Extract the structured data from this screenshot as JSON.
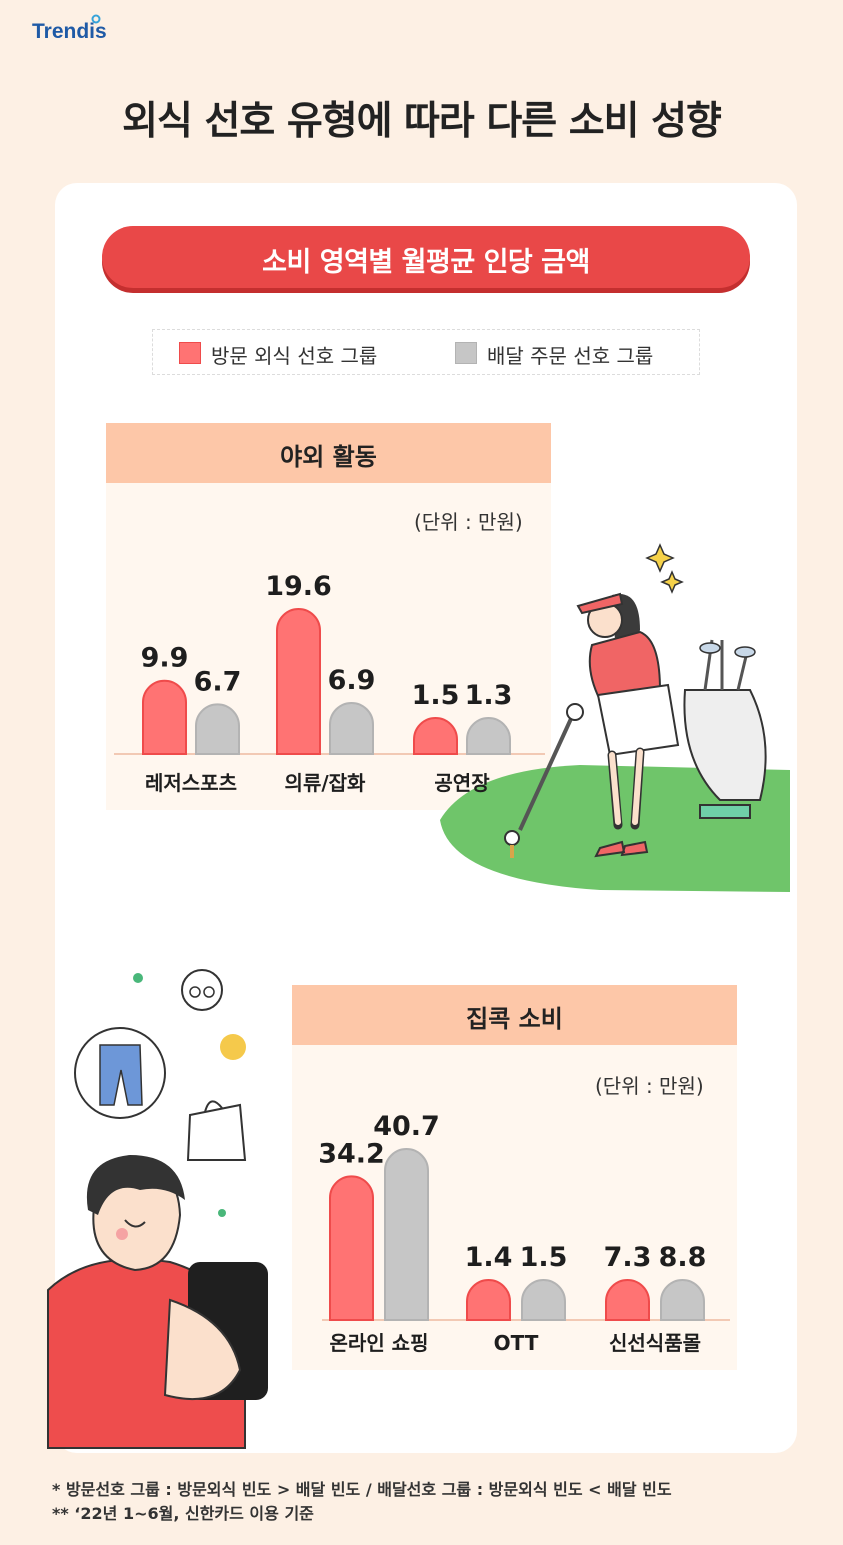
{
  "brand": "Trendis",
  "title": "외식 선호 유형에 따라 다른 소비 성향",
  "banner": "소비 영역별 월평균 인당 금액",
  "legend": {
    "series1": "방문 외식 선호 그룹",
    "series2": "배달 주문 선호 그룹"
  },
  "colors": {
    "series1": "#ff7373",
    "series1_stroke": "#ef4b4b",
    "series2": "#c6c6c6",
    "series2_stroke": "#b3b3b3",
    "panel_head": "#fdc7a8",
    "banner": "#e94848"
  },
  "chart_data": [
    {
      "type": "bar",
      "title": "야외 활동",
      "unit": "(단위 : 만원)",
      "categories": [
        "레저스포츠",
        "의류/잡화",
        "공연장"
      ],
      "series": [
        {
          "name": "방문 외식 선호 그룹",
          "values": [
            9.9,
            19.6,
            1.5
          ],
          "labels": [
            "9.9",
            "19.6",
            "1.5"
          ]
        },
        {
          "name": "배달 주문 선호 그룹",
          "values": [
            6.7,
            6.9,
            1.3
          ],
          "labels": [
            "6.7",
            "6.9",
            "1.3"
          ]
        }
      ]
    },
    {
      "type": "bar",
      "title": "집콕 소비",
      "unit": "(단위 : 만원)",
      "categories": [
        "온라인 쇼핑",
        "OTT",
        "신선식품몰"
      ],
      "series": [
        {
          "name": "방문 외식 선호 그룹",
          "values": [
            34.2,
            1.4,
            7.3
          ],
          "labels": [
            "34.2",
            "1.4",
            "7.3"
          ]
        },
        {
          "name": "배달 주문 선호 그룹",
          "values": [
            40.7,
            1.5,
            8.8
          ],
          "labels": [
            "40.7",
            "1.5",
            "8.8"
          ]
        }
      ]
    }
  ],
  "footnotes": [
    "* 방문선호 그룹 : 방문외식 빈도 > 배달 빈도 / 배달선호 그룹 : 방문외식 빈도 < 배달 빈도",
    "** ‘22년 1~6월, 신한카드 이용 기준"
  ]
}
